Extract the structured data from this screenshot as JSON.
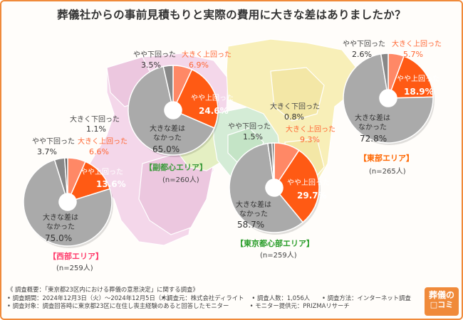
{
  "title": "葬儀社からの事前見積もりと実際の費用に大きな差はありましたか？",
  "colors": {
    "large_up": "#ff8866",
    "small_up": "#ff5a14",
    "no_diff": "#aaaaaa",
    "small_down": "#888888",
    "large_down": "#666666",
    "west": "#ff3b6b",
    "subcenter": "#3a9a3a",
    "center": "#2a9d2a",
    "east": "#ff6600"
  },
  "chart_data": [
    {
      "type": "pie",
      "title": "西部エリア",
      "n_label": "(n=259人)",
      "categories": [
        "大きく上回った",
        "やや上回った",
        "大きな差はなかった",
        "やや下回った",
        "大きく下回った"
      ],
      "values": [
        6.6,
        13.6,
        75.0,
        3.7,
        1.1
      ],
      "value_labels": [
        "6.6%",
        "13.6%",
        "75.0%",
        "3.7%",
        "1.1%"
      ]
    },
    {
      "type": "pie",
      "title": "副都心エリア",
      "n_label": "(n=260人)",
      "categories": [
        "大きく上回った",
        "やや上回った",
        "大きな差はなかった",
        "やや下回った",
        "大きく下回った"
      ],
      "values": [
        6.9,
        24.6,
        65.0,
        3.5,
        0.0
      ],
      "value_labels": [
        "6.9%",
        "24.6%",
        "65.0%",
        "3.5%",
        ""
      ]
    },
    {
      "type": "pie",
      "title": "東京都心部エリア",
      "n_label": "(n=259人)",
      "categories": [
        "大きく上回った",
        "やや上回った",
        "大きな差はなかった",
        "やや下回った",
        "大きく下回った"
      ],
      "values": [
        9.3,
        29.7,
        58.7,
        1.5,
        0.8
      ],
      "value_labels": [
        "9.3%",
        "29.7%",
        "58.7%",
        "1.5%",
        "0.8%"
      ]
    },
    {
      "type": "pie",
      "title": "東部エリア",
      "n_label": "(n=265人)",
      "categories": [
        "大きく上回った",
        "やや上回った",
        "大きな差はなかった",
        "やや下回った",
        "大きく下回った"
      ],
      "values": [
        5.7,
        18.9,
        72.8,
        2.6,
        0.0
      ],
      "value_labels": [
        "5.7%",
        "18.9%",
        "72.8%",
        "2.6%",
        ""
      ]
    }
  ],
  "labels": {
    "large_up": "大きく上回った",
    "small_up": "やや上回った",
    "no_diff_1": "大きな差は",
    "no_diff_2": "なかった",
    "small_down": "やや下回った",
    "large_down": "大きく下回った"
  },
  "areas": {
    "west": "【西部エリア】",
    "subcenter": "【副都心エリア】",
    "center": "【東京都心部エリア】",
    "east": "【東部エリア】"
  },
  "footer": {
    "line1": "《 調査概要：「東京都23区内における葬儀の意思決定」に関する調査》",
    "period": "• 調査期間：2024年12月3日（火）〜2024年12月5日（木）",
    "method_org": "• 調査元：株式会社ディライト",
    "count": "• 調査人数：1,056人",
    "method": "• 調査方法：インターネット調査",
    "target": "• 調査対象：調査回答時に東京都23区に在住し喪主経験のあると回答したモニター",
    "provider": "• モニター提供元：PRIZMAリサーチ"
  },
  "logo": {
    "line1": "葬儀の",
    "line2": "□コミ"
  }
}
